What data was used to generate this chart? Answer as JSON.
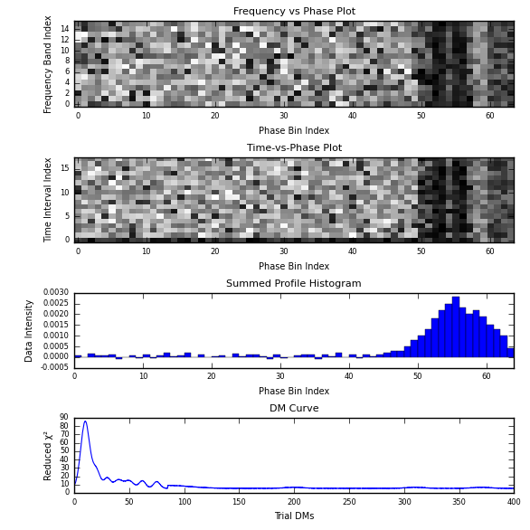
{
  "fig_width": 5.86,
  "fig_height": 5.86,
  "fig_dpi": 100,
  "panel1_title": "Frequency vs Phase Plot",
  "panel1_xlabel": "Phase Bin Index",
  "panel1_ylabel": "Frequency Band Index",
  "panel1_n_phase": 64,
  "panel1_n_freq": 16,
  "panel2_title": "Time-vs-Phase Plot",
  "panel2_xlabel": "Phase Bin Index",
  "panel2_ylabel": "Time Interval Index",
  "panel2_n_phase": 64,
  "panel2_n_time": 18,
  "panel3_title": "Summed Profile Histogram",
  "panel3_xlabel": "Phase Bin Index",
  "panel3_ylabel": "Data Intensity",
  "panel3_ylim": [
    -0.0005,
    0.003
  ],
  "panel3_xlim": [
    0,
    64
  ],
  "panel3_bar_color": "#0000FF",
  "panel4_title": "DM Curve",
  "panel4_xlabel": "Trial DMs",
  "panel4_ylabel": "Reduced χ²",
  "panel4_ylim": [
    0,
    90
  ],
  "panel4_xlim": [
    0,
    400
  ],
  "panel4_line_color": "#0000FF",
  "seed": 42
}
